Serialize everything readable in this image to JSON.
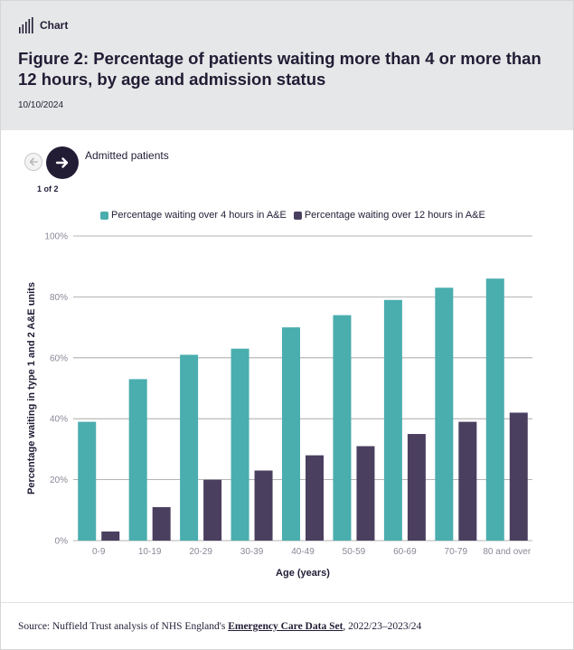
{
  "header": {
    "tag_label": "Chart",
    "title": "Figure 2: Percentage of patients waiting more than 4 or more than 12 hours, by age and admission status",
    "date": "10/10/2024"
  },
  "carousel": {
    "counter": "1 of 2",
    "panel_title": "Admitted patients"
  },
  "colors": {
    "header_bg": "#e6e7e8",
    "teal": "#4aadae",
    "purple": "#4b3f60",
    "text": "#221c35"
  },
  "chart_data": {
    "type": "bar",
    "categories": [
      "0-9",
      "10-19",
      "20-29",
      "30-39",
      "40-49",
      "50-59",
      "60-69",
      "70-79",
      "80 and over"
    ],
    "series": [
      {
        "name": "Percentage waiting over 4 hours in A&E",
        "color": "#4aadae",
        "values": [
          39,
          53,
          61,
          63,
          70,
          74,
          79,
          83,
          86
        ]
      },
      {
        "name": "Percentage waiting over 12 hours in A&E",
        "color": "#4b3f60",
        "values": [
          3,
          11,
          20,
          23,
          28,
          31,
          35,
          39,
          42
        ]
      }
    ],
    "xlabel": "Age (years)",
    "ylabel": "Percentage waiting in type 1 and 2 A&E units",
    "ylim": [
      0,
      100
    ],
    "yticks": [
      "0%",
      "20%",
      "40%",
      "60%",
      "80%",
      "100%"
    ],
    "ytick_values": [
      0,
      20,
      40,
      60,
      80,
      100
    ],
    "legend_position": "top",
    "grid": true
  },
  "footer": {
    "source_prefix": "Source: Nuffield Trust analysis of NHS England's ",
    "source_link": "Emergency Care Data Set",
    "source_suffix": ", 2022/23–2023/24"
  }
}
